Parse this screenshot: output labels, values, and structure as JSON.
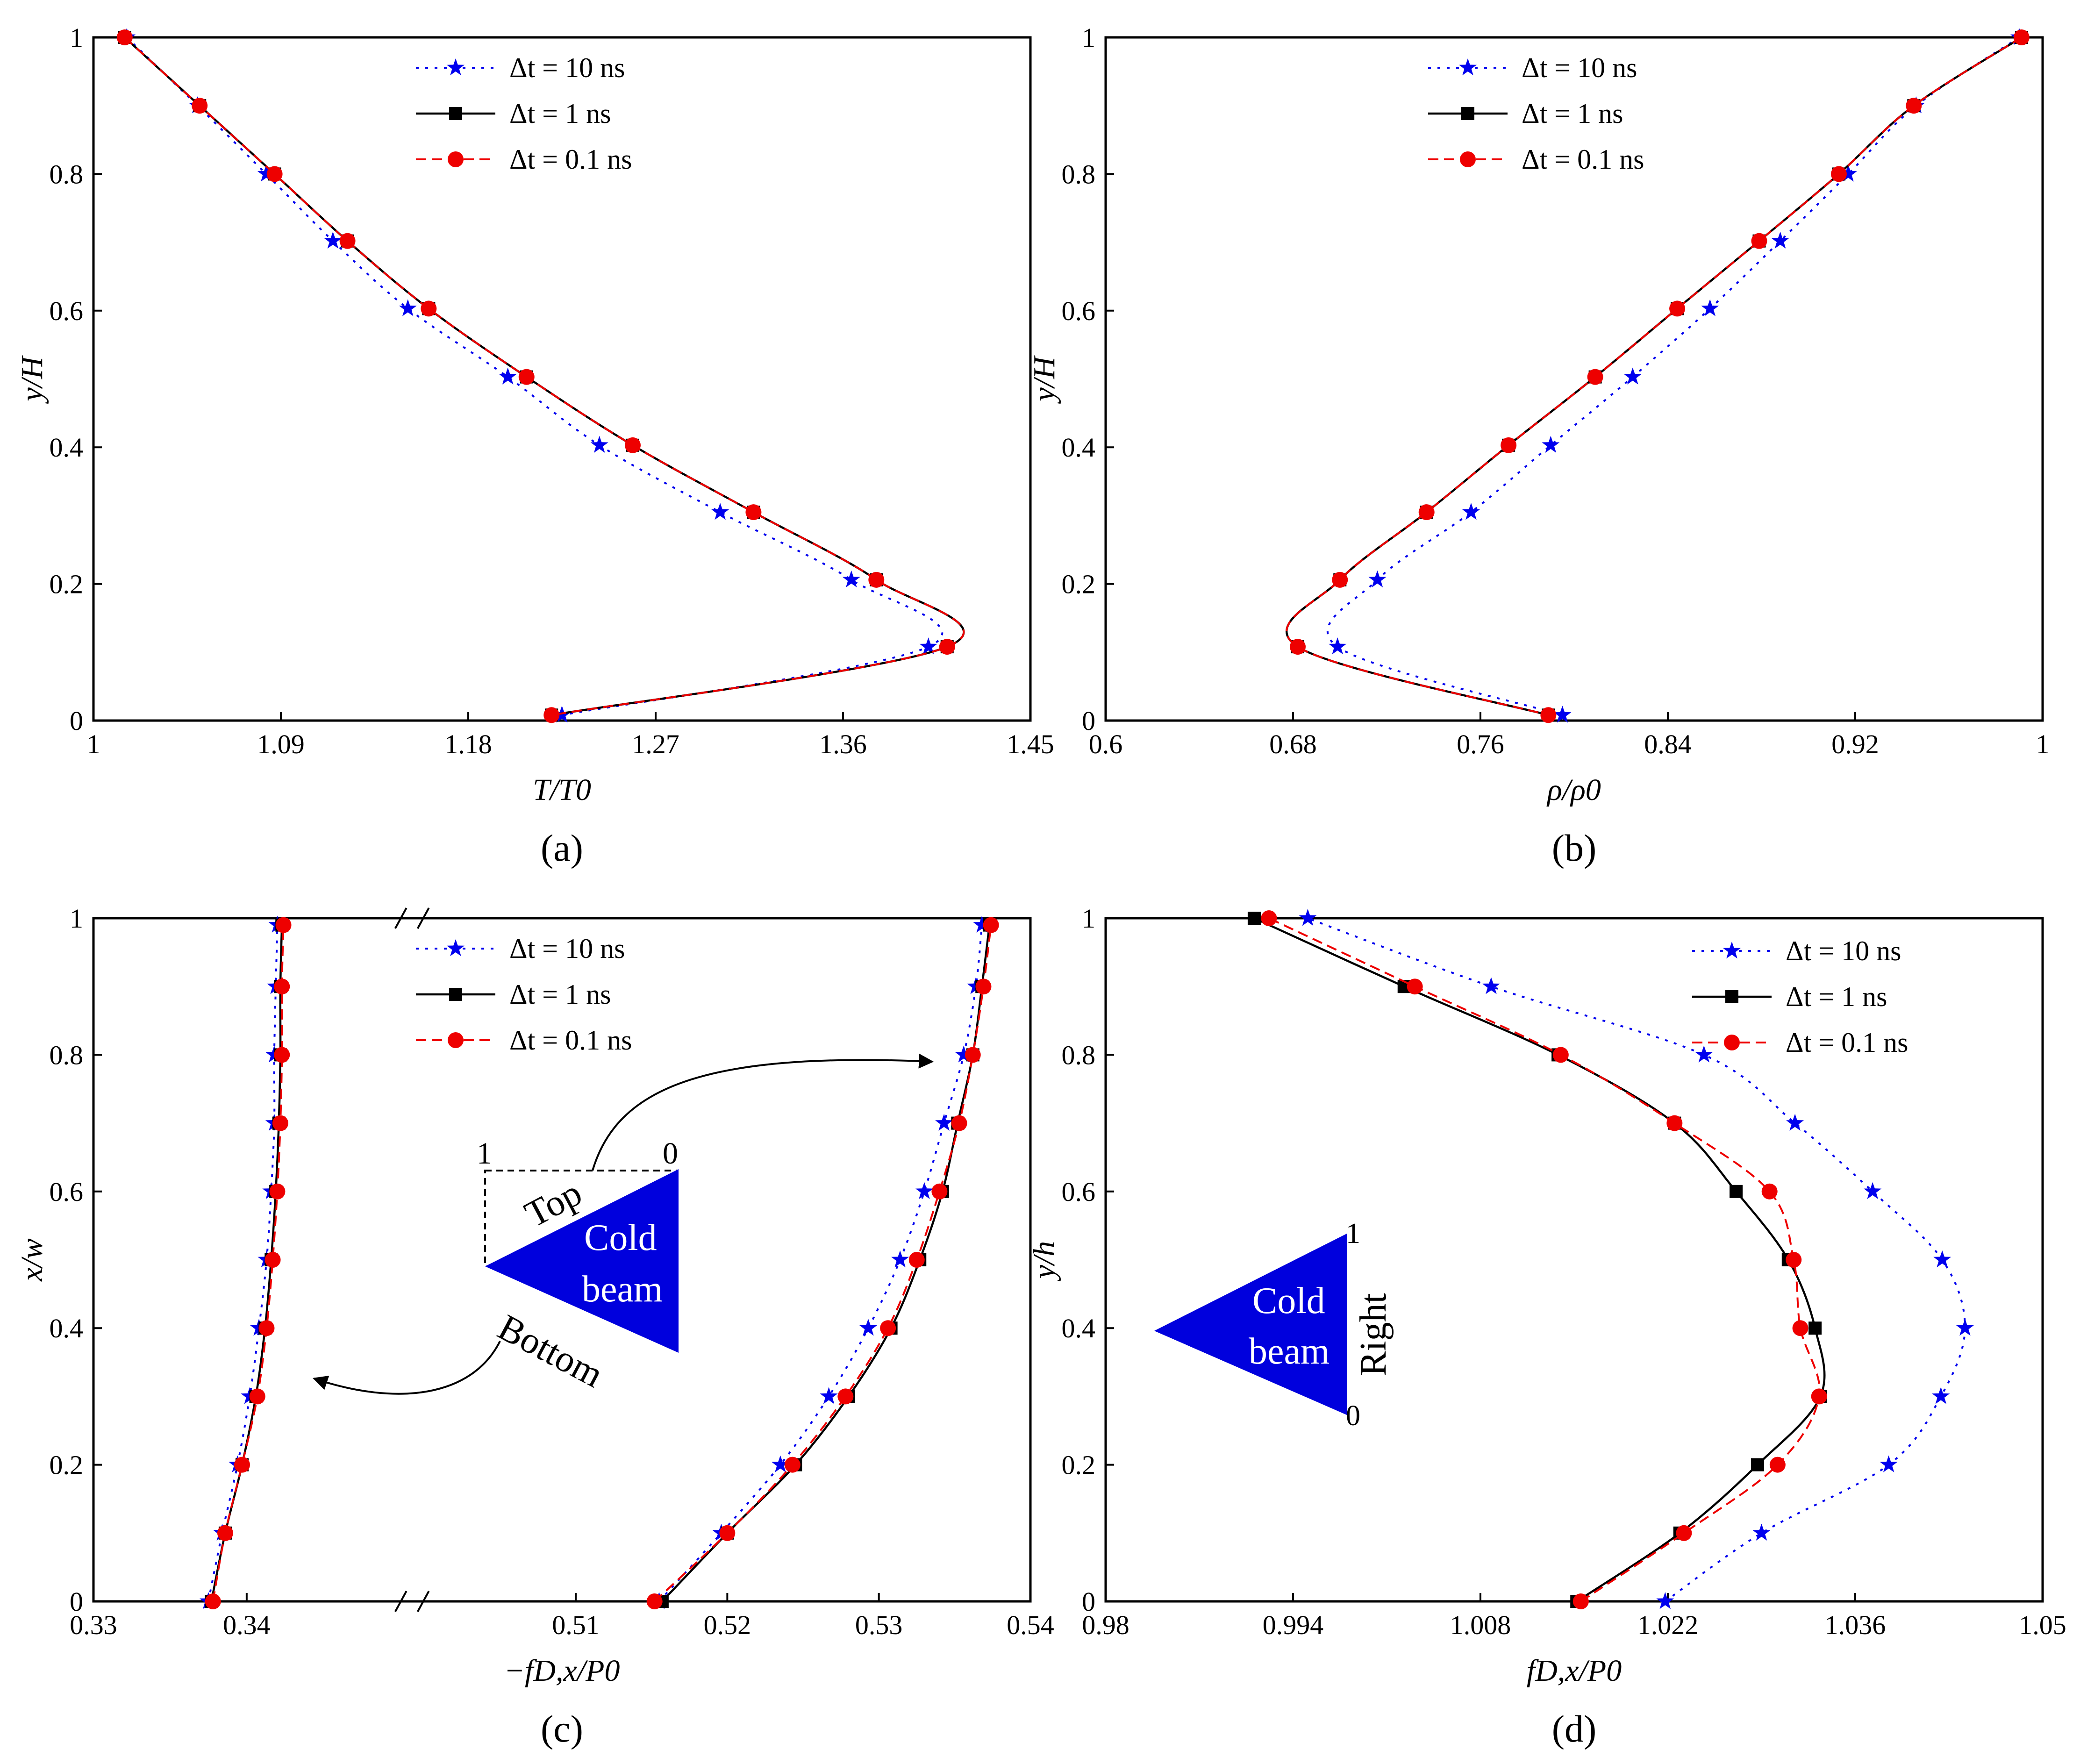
{
  "colors": {
    "dt10": "#0000ee",
    "dt1": "#000000",
    "dt01": "#ee0000",
    "beam": "#0000dd"
  },
  "legend_labels": [
    "Δt = 10 ns",
    "Δt = 1 ns",
    "Δt = 0.1 ns"
  ],
  "annotations": {
    "top": "Top",
    "bottom": "Bottom",
    "right": "Right",
    "cold": "Cold",
    "beam": "beam",
    "c_tri_left": "1",
    "c_tri_right": "0",
    "d_tri_top": "1",
    "d_tri_bottom": "0"
  },
  "chart_data": [
    {
      "id": "a",
      "type": "line",
      "panel_label": "(a)",
      "xlabel": "T/T0",
      "ylabel": "y/H",
      "xlim": [
        1,
        1.45
      ],
      "ylim": [
        0,
        1
      ],
      "xticks": [
        "1",
        "1.09",
        "1.18",
        "1.27",
        "1.36",
        "1.45"
      ],
      "yticks": [
        "0",
        "0.2",
        "0.4",
        "0.6",
        "0.8",
        "1"
      ],
      "legend_position": "top-center",
      "series": [
        {
          "name": "Δt = 10 ns",
          "style": "dotted-star",
          "x": [
            1.016,
            1.05,
            1.083,
            1.115,
            1.151,
            1.199,
            1.243,
            1.301,
            1.364,
            1.401,
            1.225
          ],
          "y": [
            1.0,
            0.9,
            0.8,
            0.702,
            0.603,
            0.503,
            0.403,
            0.305,
            0.206,
            0.108,
            0.008
          ]
        },
        {
          "name": "Δt = 1 ns",
          "style": "solid-square",
          "x": [
            1.015,
            1.051,
            1.087,
            1.122,
            1.161,
            1.208,
            1.259,
            1.317,
            1.376,
            1.41,
            1.22
          ],
          "y": [
            1.0,
            0.9,
            0.8,
            0.702,
            0.603,
            0.503,
            0.403,
            0.305,
            0.206,
            0.108,
            0.008
          ]
        },
        {
          "name": "Δt = 0.1 ns",
          "style": "dashed-circle",
          "x": [
            1.015,
            1.051,
            1.087,
            1.122,
            1.161,
            1.208,
            1.259,
            1.317,
            1.376,
            1.41,
            1.22
          ],
          "y": [
            1.0,
            0.9,
            0.8,
            0.702,
            0.603,
            0.503,
            0.403,
            0.305,
            0.206,
            0.108,
            0.008
          ]
        }
      ]
    },
    {
      "id": "b",
      "type": "line",
      "panel_label": "(b)",
      "xlabel": "ρ/ρ0",
      "ylabel": "y/H",
      "xlim": [
        0.6,
        1
      ],
      "ylim": [
        0,
        1
      ],
      "xticks": [
        "0.6",
        "0.68",
        "0.76",
        "0.84",
        "0.92",
        "1"
      ],
      "yticks": [
        "0",
        "0.2",
        "0.4",
        "0.6",
        "0.8",
        "1"
      ],
      "legend_position": "top-center",
      "series": [
        {
          "name": "Δt = 10 ns",
          "style": "dotted-star",
          "x": [
            0.99,
            0.946,
            0.917,
            0.888,
            0.858,
            0.825,
            0.79,
            0.756,
            0.716,
            0.699,
            0.795
          ],
          "y": [
            1.0,
            0.9,
            0.8,
            0.702,
            0.603,
            0.503,
            0.403,
            0.305,
            0.206,
            0.108,
            0.008
          ]
        },
        {
          "name": "Δt = 1 ns",
          "style": "solid-square",
          "x": [
            0.991,
            0.945,
            0.913,
            0.879,
            0.844,
            0.809,
            0.772,
            0.737,
            0.7,
            0.682,
            0.789
          ],
          "y": [
            1.0,
            0.9,
            0.8,
            0.702,
            0.603,
            0.503,
            0.403,
            0.305,
            0.206,
            0.108,
            0.008
          ]
        },
        {
          "name": "Δt = 0.1 ns",
          "style": "dashed-circle",
          "x": [
            0.991,
            0.945,
            0.913,
            0.879,
            0.844,
            0.809,
            0.772,
            0.737,
            0.7,
            0.682,
            0.789
          ],
          "y": [
            1.0,
            0.9,
            0.8,
            0.702,
            0.603,
            0.503,
            0.403,
            0.305,
            0.206,
            0.108,
            0.008
          ]
        }
      ]
    },
    {
      "id": "c",
      "type": "line",
      "panel_label": "(c)",
      "xlabel": "−fD,x/P0",
      "ylabel": "x/w",
      "broken_x_axis": true,
      "xlim_left": [
        0.33,
        0.35
      ],
      "xlim_right": [
        0.5,
        0.54
      ],
      "ylim": [
        0,
        1
      ],
      "xticks": [
        "0.33",
        "0.34",
        "0.51",
        "0.52",
        "0.53",
        "0.54"
      ],
      "yticks": [
        "0",
        "0.2",
        "0.4",
        "0.6",
        "0.8",
        "1"
      ],
      "legend_position": "top-center",
      "series": [
        {
          "name": "Δt = 10 ns",
          "style": "dotted-star",
          "group": "bottom",
          "x": [
            0.3375,
            0.3384,
            0.3394,
            0.3402,
            0.3408,
            0.3413,
            0.3416,
            0.3418,
            0.3418,
            0.3419,
            0.342
          ],
          "y": [
            0.0,
            0.1,
            0.2,
            0.3,
            0.4,
            0.5,
            0.6,
            0.7,
            0.8,
            0.9,
            0.99
          ]
        },
        {
          "name": "Δt = 10 ns",
          "style": "dotted-star",
          "group": "top",
          "x": [
            0.5155,
            0.5196,
            0.5235,
            0.5267,
            0.5293,
            0.5314,
            0.533,
            0.5343,
            0.5356,
            0.5364,
            0.5368
          ],
          "y": [
            0.0,
            0.1,
            0.2,
            0.3,
            0.4,
            0.5,
            0.6,
            0.7,
            0.8,
            0.9,
            0.99
          ]
        },
        {
          "name": "Δt = 1 ns",
          "style": "solid-square",
          "group": "bottom",
          "x": [
            0.3377,
            0.3386,
            0.3397,
            0.3406,
            0.3412,
            0.3416,
            0.3419,
            0.3421,
            0.3422,
            0.3422,
            0.3423
          ],
          "y": [
            0.0,
            0.1,
            0.2,
            0.3,
            0.4,
            0.5,
            0.6,
            0.7,
            0.8,
            0.9,
            0.99
          ]
        },
        {
          "name": "Δt = 1 ns",
          "style": "solid-square",
          "group": "top",
          "x": [
            0.5157,
            0.52,
            0.5245,
            0.528,
            0.5308,
            0.5327,
            0.5342,
            0.5352,
            0.5362,
            0.5368,
            0.5373
          ],
          "y": [
            0.0,
            0.1,
            0.2,
            0.3,
            0.4,
            0.5,
            0.6,
            0.7,
            0.8,
            0.9,
            0.99
          ]
        },
        {
          "name": "Δt = 0.1 ns",
          "style": "dashed-circle",
          "group": "bottom",
          "x": [
            0.3378,
            0.3386,
            0.3397,
            0.3407,
            0.3413,
            0.3417,
            0.342,
            0.3422,
            0.3423,
            0.3423,
            0.3424
          ],
          "y": [
            0.0,
            0.1,
            0.2,
            0.3,
            0.4,
            0.5,
            0.6,
            0.7,
            0.8,
            0.9,
            0.99
          ]
        },
        {
          "name": "Δt = 0.1 ns",
          "style": "dashed-circle",
          "group": "top",
          "x": [
            0.5152,
            0.52,
            0.5243,
            0.5278,
            0.5306,
            0.5325,
            0.534,
            0.5353,
            0.5362,
            0.5369,
            0.5374
          ],
          "y": [
            0.0,
            0.1,
            0.2,
            0.3,
            0.4,
            0.5,
            0.6,
            0.7,
            0.8,
            0.9,
            0.99
          ]
        }
      ]
    },
    {
      "id": "d",
      "type": "line",
      "panel_label": "(d)",
      "xlabel": "fD,x/P0",
      "ylabel": "y/h",
      "xlim": [
        0.98,
        1.05
      ],
      "ylim": [
        0,
        1
      ],
      "xticks": [
        "0.98",
        "0.994",
        "1.008",
        "1.022",
        "1.036",
        "1.05"
      ],
      "yticks": [
        "0",
        "0.2",
        "0.4",
        "0.6",
        "0.8",
        "1"
      ],
      "legend_position": "top-right",
      "series": [
        {
          "name": "Δt = 10 ns",
          "style": "dotted-star",
          "x": [
            1.0218,
            1.029,
            1.0385,
            1.0424,
            1.0442,
            1.0425,
            1.0373,
            1.0315,
            1.0247,
            1.0088,
            0.9951
          ],
          "y": [
            0.0,
            0.1,
            0.2,
            0.3,
            0.4,
            0.5,
            0.6,
            0.7,
            0.8,
            0.9,
            1.0
          ]
        },
        {
          "name": "Δt = 1 ns",
          "style": "solid-square",
          "x": [
            1.0152,
            1.0229,
            1.0287,
            1.0334,
            1.033,
            1.031,
            1.0271,
            1.0225,
            1.0138,
            1.0023,
            0.9911
          ],
          "y": [
            0.0,
            0.1,
            0.2,
            0.3,
            0.4,
            0.5,
            0.6,
            0.7,
            0.8,
            0.9,
            1.0
          ]
        },
        {
          "name": "Δt = 0.1 ns",
          "style": "dashed-circle",
          "x": [
            1.0155,
            1.0232,
            1.0302,
            1.0333,
            1.0319,
            1.0314,
            1.0296,
            1.0225,
            1.014,
            1.0031,
            0.9922
          ],
          "y": [
            0.0,
            0.1,
            0.2,
            0.3,
            0.4,
            0.5,
            0.6,
            0.7,
            0.8,
            0.9,
            1.0
          ]
        }
      ]
    }
  ]
}
